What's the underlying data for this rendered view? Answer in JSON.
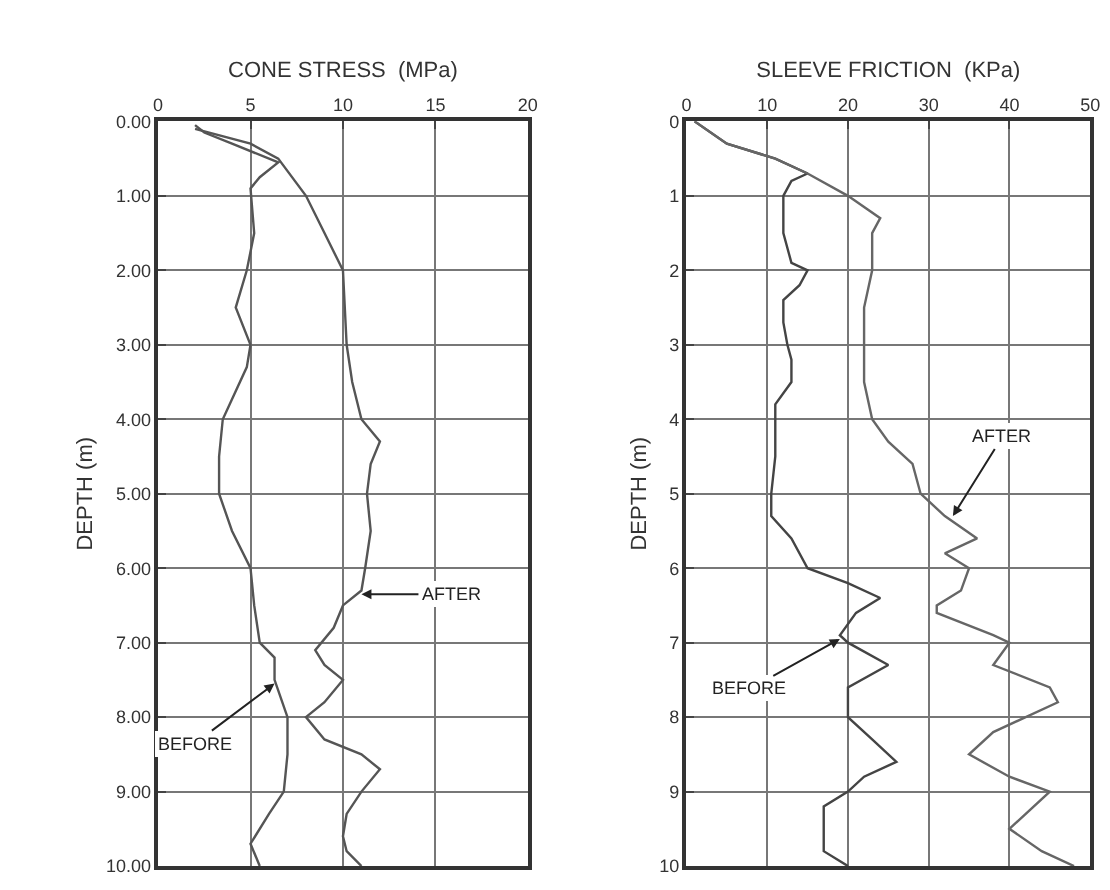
{
  "chart_data": [
    {
      "type": "line",
      "xlabel": "CONE STRESS  (MPa)",
      "ylabel": "DEPTH (m)",
      "xlim": [
        0,
        20
      ],
      "xticks": [
        0,
        5,
        10,
        15,
        20
      ],
      "ylim": [
        10,
        0
      ],
      "yticks": [
        {
          "value": 0,
          "label": "0.00"
        },
        {
          "value": 1,
          "label": "1.00"
        },
        {
          "value": 2,
          "label": "2.00"
        },
        {
          "value": 3,
          "label": "3.00"
        },
        {
          "value": 4,
          "label": "4.00"
        },
        {
          "value": 5,
          "label": "5.00"
        },
        {
          "value": 6,
          "label": "6.00"
        },
        {
          "value": 7,
          "label": "7.00"
        },
        {
          "value": 8,
          "label": "8.00"
        },
        {
          "value": 9,
          "label": "9.00"
        },
        {
          "value": 10,
          "label": "10.00"
        }
      ],
      "grid": true,
      "line_style": "solid",
      "marker": "none",
      "series": [
        {
          "color": "#555555",
          "x": [
            2,
            2.5,
            4,
            6.5,
            5.5,
            5,
            5.2,
            4.8,
            4.2,
            5,
            4.8,
            3.5,
            3.3,
            3.3,
            4,
            5,
            5.2,
            5.5,
            6.3,
            6.3,
            7,
            7,
            6.8,
            6,
            5,
            5.5
          ],
          "values": [
            0.05,
            0.15,
            0.3,
            0.55,
            0.75,
            0.9,
            1.5,
            2,
            2.5,
            3,
            3.3,
            4,
            4.5,
            5,
            5.5,
            6,
            6.5,
            7,
            7.2,
            7.5,
            8,
            8.5,
            9,
            9.3,
            9.7,
            10
          ]
        },
        {
          "color": "#555555",
          "x": [
            2,
            5,
            6.5,
            8,
            9,
            10,
            10.2,
            10.5,
            11,
            12,
            11.5,
            11.3,
            11.5,
            11.2,
            11,
            10,
            9.5,
            8.5,
            9,
            10,
            9,
            8,
            9,
            11,
            12,
            11,
            10.2,
            10,
            10.2,
            11
          ],
          "values": [
            0.1,
            0.3,
            0.5,
            1,
            1.5,
            2,
            3,
            3.5,
            4,
            4.3,
            4.6,
            5,
            5.5,
            6,
            6.3,
            6.5,
            6.8,
            7.1,
            7.3,
            7.5,
            7.8,
            8,
            8.3,
            8.5,
            8.7,
            9,
            9.3,
            9.6,
            9.8,
            10
          ]
        }
      ],
      "annotations": [
        {
          "text": "AFTER",
          "x": 11,
          "y": 6.35
        },
        {
          "text": "BEFORE",
          "x": 6.3,
          "y": 7.55
        }
      ]
    },
    {
      "type": "line",
      "xlabel": "SLEEVE FRICTION  (KPa)",
      "ylabel": "DEPTH (m)",
      "xlim": [
        0,
        50
      ],
      "xticks": [
        0,
        10,
        20,
        30,
        40,
        50
      ],
      "ylim": [
        10,
        0
      ],
      "yticks": [
        0,
        1,
        2,
        3,
        4,
        5,
        6,
        7,
        8,
        9,
        10
      ],
      "grid": true,
      "line_style": "solid",
      "marker": "none",
      "series": [
        {
          "color": "#444444",
          "x": [
            1,
            5,
            11,
            15,
            13,
            12,
            12,
            13,
            15,
            14,
            12,
            12,
            12.5,
            13,
            13,
            11,
            11,
            10.5,
            10.5,
            13,
            15,
            20,
            24,
            21,
            19,
            20,
            25,
            20,
            20,
            23,
            26,
            22,
            20,
            17,
            17,
            17,
            20
          ],
          "values": [
            0,
            0.3,
            0.5,
            0.7,
            0.8,
            1,
            1.5,
            1.9,
            2,
            2.2,
            2.4,
            2.7,
            3,
            3.2,
            3.5,
            3.8,
            4.5,
            5,
            5.3,
            5.6,
            6,
            6.2,
            6.4,
            6.6,
            6.9,
            7,
            7.3,
            7.6,
            8,
            8.3,
            8.6,
            8.8,
            9,
            9.2,
            9.5,
            9.8,
            10
          ]
        },
        {
          "color": "#666666",
          "x": [
            1,
            5,
            11,
            15,
            20,
            24,
            23,
            23,
            22,
            22,
            22,
            22,
            23,
            25,
            28,
            29,
            32,
            36,
            32,
            35,
            34,
            31,
            31,
            38,
            40,
            38,
            45,
            46,
            38,
            35,
            40,
            45,
            40,
            44,
            48
          ],
          "values": [
            0,
            0.3,
            0.5,
            0.7,
            1,
            1.3,
            1.5,
            2,
            2.5,
            2.7,
            3,
            3.5,
            4,
            4.3,
            4.6,
            5,
            5.3,
            5.6,
            5.8,
            6,
            6.3,
            6.5,
            6.6,
            6.9,
            7,
            7.3,
            7.6,
            7.8,
            8.2,
            8.5,
            8.8,
            9,
            9.5,
            9.8,
            10
          ]
        }
      ],
      "annotations": [
        {
          "text": "AFTER",
          "x": 33,
          "y": 5.3
        },
        {
          "text": "BEFORE",
          "x": 19,
          "y": 6.95
        }
      ]
    }
  ]
}
